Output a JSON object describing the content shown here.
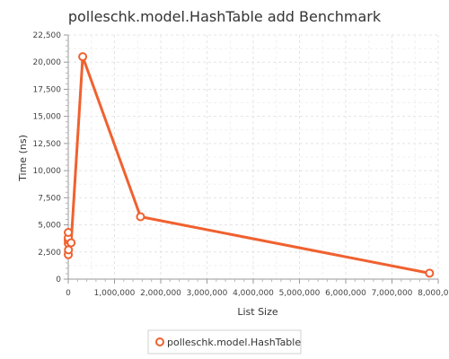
{
  "chart_data": {
    "type": "line",
    "title": "polleschk.model.HashTable add Benchmark",
    "xlabel": "List Size",
    "ylabel": "Time (ns)",
    "xlim": [
      0,
      8000000
    ],
    "ylim": [
      0,
      22500
    ],
    "x_ticks": [
      0,
      1000000,
      2000000,
      3000000,
      4000000,
      5000000,
      6000000,
      7000000,
      8000000
    ],
    "x_tick_labels": [
      "0",
      "1,000,000",
      "2,000,000",
      "3,000,000",
      "4,000,000",
      "5,000,000",
      "6,000,000",
      "7,000,000",
      "8,000,000"
    ],
    "y_ticks": [
      0,
      2500,
      5000,
      7500,
      10000,
      12500,
      15000,
      17500,
      20000,
      22500
    ],
    "y_tick_labels": [
      "0",
      "2,500",
      "5,000",
      "7,500",
      "10,000",
      "12,500",
      "15,000",
      "17,500",
      "20,000",
      "22,500"
    ],
    "grid": true,
    "legend_position": "bottom-center",
    "series": [
      {
        "name": "polleschk.model.HashTable",
        "color": "#f0612f",
        "points": [
          {
            "x": 10,
            "y": 3300
          },
          {
            "x": 50,
            "y": 3600
          },
          {
            "x": 100,
            "y": 3800
          },
          {
            "x": 500,
            "y": 4300
          },
          {
            "x": 1000,
            "y": 2250
          },
          {
            "x": 5000,
            "y": 2700
          },
          {
            "x": 62500,
            "y": 3350
          },
          {
            "x": 312500,
            "y": 20500
          },
          {
            "x": 1562500,
            "y": 5750
          },
          {
            "x": 7812500,
            "y": 550
          }
        ]
      }
    ]
  }
}
